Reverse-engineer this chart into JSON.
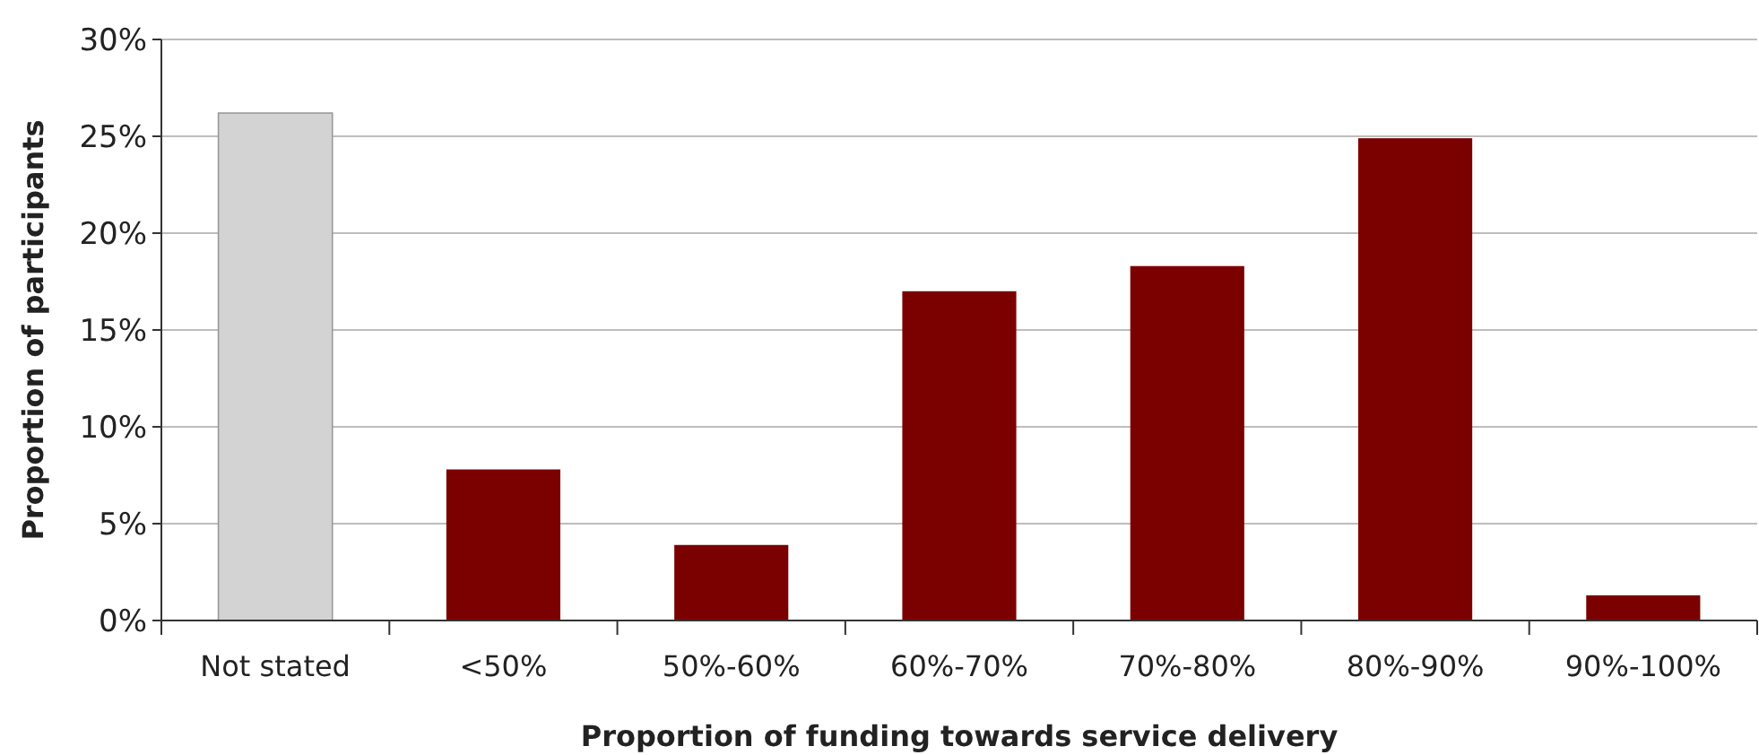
{
  "chart_data": {
    "type": "bar",
    "xlabel": "Proportion of funding towards service delivery",
    "ylabel": "Proportion of participants",
    "categories": [
      "Not stated",
      "<50%",
      "50%-60%",
      "60%-70%",
      "70%-80%",
      "80%-90%",
      "90%-100%"
    ],
    "values": [
      26.2,
      7.8,
      3.9,
      17.0,
      18.3,
      24.9,
      1.3
    ],
    "colors": [
      "#d3d3d3",
      "#7b0000",
      "#7b0000",
      "#7b0000",
      "#7b0000",
      "#7b0000",
      "#7b0000"
    ],
    "ylim": [
      0,
      30
    ],
    "yticks": [
      {
        "value": 0,
        "label": "0%"
      },
      {
        "value": 5,
        "label": "5%"
      },
      {
        "value": 10,
        "label": "10%"
      },
      {
        "value": 15,
        "label": "15%"
      },
      {
        "value": 20,
        "label": "20%"
      },
      {
        "value": 25,
        "label": "25%"
      },
      {
        "value": 30,
        "label": "30%"
      }
    ],
    "grid": "y"
  }
}
